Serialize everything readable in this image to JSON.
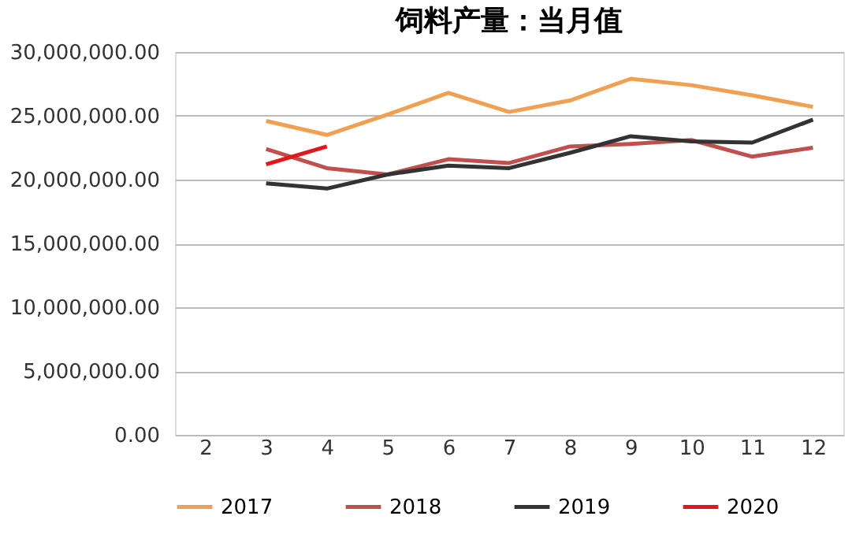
{
  "chart_data": {
    "type": "line",
    "title": "饲料产量：当月值",
    "categories": [
      "2",
      "3",
      "4",
      "5",
      "6",
      "7",
      "8",
      "9",
      "10",
      "11",
      "12"
    ],
    "series": [
      {
        "name": "2017",
        "color": "#f0a050",
        "values": [
          null,
          24600000,
          23500000,
          25100000,
          26800000,
          25300000,
          26200000,
          27900000,
          27400000,
          26600000,
          25700000
        ]
      },
      {
        "name": "2018",
        "color": "#c0504d",
        "values": [
          null,
          22400000,
          20900000,
          20400000,
          21600000,
          21300000,
          22600000,
          22800000,
          23100000,
          21800000,
          22500000
        ]
      },
      {
        "name": "2019",
        "color": "#333333",
        "values": [
          null,
          19700000,
          19300000,
          20400000,
          21100000,
          20900000,
          22100000,
          23400000,
          23000000,
          22900000,
          24700000
        ]
      },
      {
        "name": "2020",
        "color": "#e3161c",
        "values": [
          null,
          21200000,
          22600000,
          null,
          null,
          null,
          null,
          null,
          null,
          null,
          null
        ]
      }
    ],
    "ylim": [
      0,
      30000000
    ],
    "yticks": [
      {
        "value": 0,
        "label": "0.00"
      },
      {
        "value": 5000000,
        "label": "5,000,000.00"
      },
      {
        "value": 10000000,
        "label": "10,000,000.00"
      },
      {
        "value": 15000000,
        "label": "15,000,000.00"
      },
      {
        "value": 20000000,
        "label": "20,000,000.00"
      },
      {
        "value": 25000000,
        "label": "25,000,000.00"
      },
      {
        "value": 30000000,
        "label": "30,000,000.00"
      }
    ],
    "grid": "y",
    "legend": "bottom",
    "marker": "none",
    "line_style": "solid"
  }
}
